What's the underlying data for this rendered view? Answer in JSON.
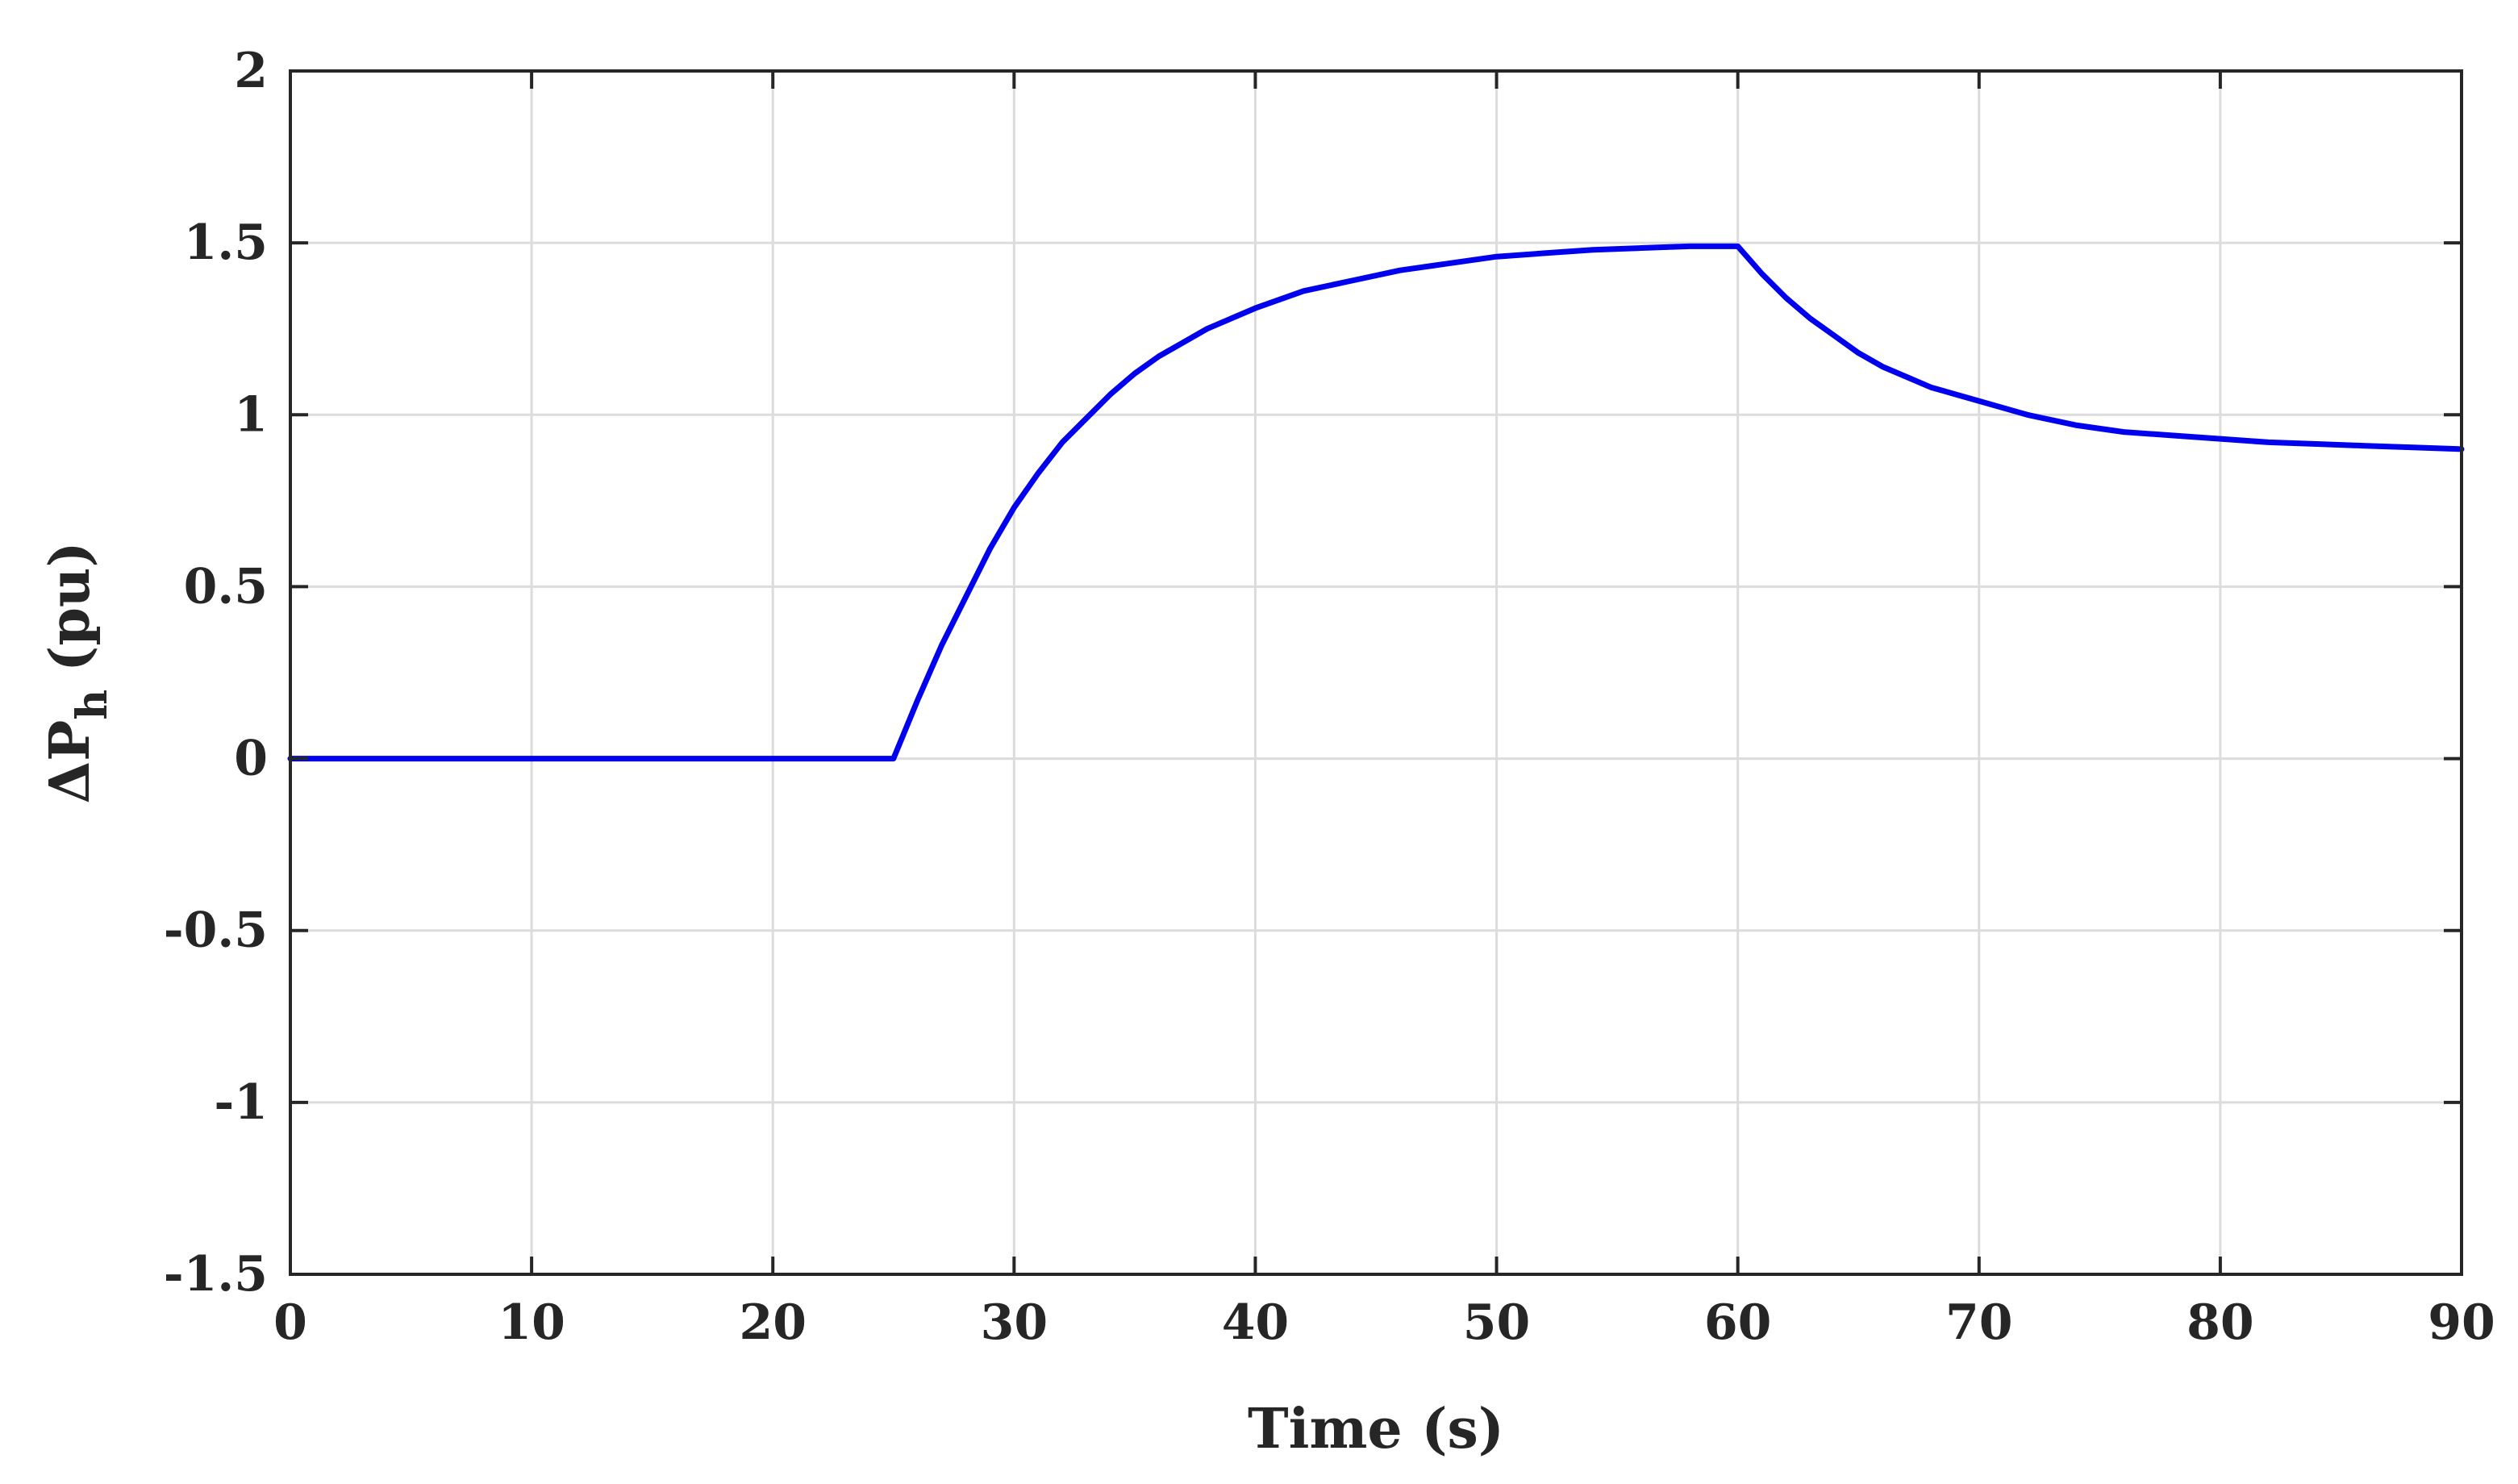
{
  "chart_data": {
    "type": "line",
    "title": "",
    "xlabel": "Time (s)",
    "ylabel_main": "ΔP",
    "ylabel_sub": "h",
    "ylabel_unit": "(pu)",
    "xlim": [
      0,
      90
    ],
    "ylim": [
      -1.5,
      2
    ],
    "xticks": [
      0,
      10,
      20,
      30,
      40,
      50,
      60,
      70,
      80,
      90
    ],
    "xtick_labels": [
      "0",
      "10",
      "20",
      "30",
      "40",
      "50",
      "60",
      "70",
      "80",
      "90"
    ],
    "yticks": [
      -1.5,
      -1,
      -0.5,
      0,
      0.5,
      1,
      1.5,
      2
    ],
    "ytick_labels": [
      "-1.5",
      "-1",
      "-0.5",
      "0",
      "0.5",
      "1",
      "1.5",
      "2"
    ],
    "grid": true,
    "series": [
      {
        "color": "#0000ee",
        "x": [
          0,
          25,
          26,
          27,
          28,
          29,
          30,
          31,
          32,
          33,
          34,
          35,
          36,
          37,
          38,
          39,
          40,
          42,
          44,
          46,
          48,
          50,
          52,
          54,
          56,
          58,
          60,
          61,
          62,
          63,
          64,
          65,
          66,
          67,
          68,
          69,
          70,
          72,
          74,
          76,
          78,
          80,
          82,
          84,
          86,
          88,
          90
        ],
        "y": [
          0,
          0,
          0.17,
          0.33,
          0.47,
          0.61,
          0.73,
          0.83,
          0.92,
          0.99,
          1.06,
          1.12,
          1.17,
          1.21,
          1.25,
          1.28,
          1.31,
          1.36,
          1.39,
          1.42,
          1.44,
          1.46,
          1.47,
          1.48,
          1.485,
          1.49,
          1.49,
          1.41,
          1.34,
          1.28,
          1.23,
          1.18,
          1.14,
          1.11,
          1.08,
          1.06,
          1.04,
          1.0,
          0.97,
          0.95,
          0.94,
          0.93,
          0.92,
          0.915,
          0.91,
          0.905,
          0.9
        ]
      }
    ]
  }
}
